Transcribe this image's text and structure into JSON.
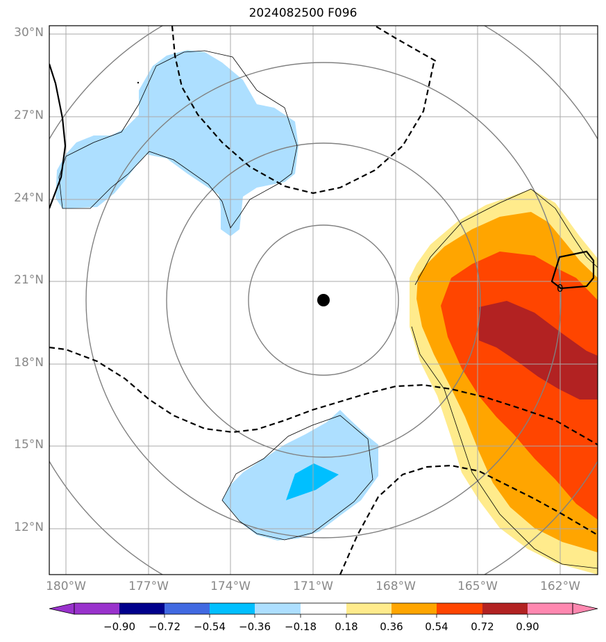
{
  "title": "2024082500 F096",
  "map": {
    "lat_labels": [
      "30°N",
      "27°N",
      "24°N",
      "21°N",
      "18°N",
      "15°N",
      "12°N"
    ],
    "lon_labels": [
      "180°W",
      "177°W",
      "174°W",
      "171°W",
      "168°W",
      "165°W",
      "162°W"
    ],
    "storm_center": {
      "lat": 20.3,
      "lon": -170.6
    },
    "contour_label": "0",
    "grid": true
  },
  "colorbar": {
    "tick_labels": [
      "−0.90",
      "−0.72",
      "−0.54",
      "−0.36",
      "−0.18",
      "0.18",
      "0.36",
      "0.54",
      "0.72",
      "0.90"
    ],
    "colors": [
      "#9932CC",
      "#00008B",
      "#4169E1",
      "#00BFFF",
      "#ADDFFF",
      "#FFFFFF",
      "#FFEB8C",
      "#FFA500",
      "#FF4500",
      "#B22222",
      "#FF88B0"
    ]
  }
}
